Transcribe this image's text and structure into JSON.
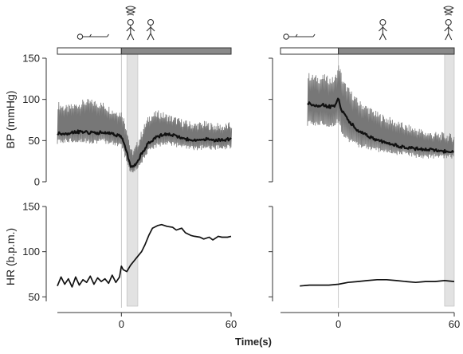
{
  "chart_data": [
    {
      "type": "line",
      "panel": "left",
      "title": "",
      "posture_bar": [
        {
          "state": "supine",
          "x_start": -35,
          "x_end": 0,
          "color": "#ffffff"
        },
        {
          "state": "standing",
          "x_start": 0,
          "x_end": 60,
          "color": "#8a8a8a"
        }
      ],
      "icons": [
        {
          "name": "supine-person-icon",
          "x": -13
        },
        {
          "name": "dizzy-person-icon",
          "x": 5
        },
        {
          "name": "standing-person-icon",
          "x": 16
        }
      ],
      "shaded_band": {
        "x_start": 3,
        "x_end": 9
      },
      "bp": {
        "ylabel": "BP (mmHg)",
        "ylim": [
          0,
          150
        ],
        "yticks": [
          0,
          50,
          100,
          150
        ],
        "series": [
          {
            "x": [
              -35,
              -30,
              -25,
              -20,
              -15,
              -10,
              -5,
              0,
              3,
              5,
              7,
              9,
              12,
              15,
              20,
              25,
              30,
              35,
              40,
              45,
              50,
              55,
              60
            ],
            "upper": [
              93,
              88,
              92,
              96,
              95,
              92,
              85,
              82,
              60,
              35,
              38,
              48,
              65,
              78,
              82,
              78,
              74,
              70,
              68,
              69,
              67,
              66,
              68
            ],
            "mean": [
              58,
              59,
              61,
              60,
              59,
              60,
              58,
              55,
              35,
              18,
              19,
              25,
              38,
              48,
              55,
              58,
              55,
              52,
              50,
              52,
              50,
              51,
              52
            ],
            "lower": [
              48,
              50,
              51,
              50,
              49,
              50,
              47,
              45,
              25,
              12,
              13,
              18,
              28,
              38,
              45,
              48,
              45,
              42,
              40,
              42,
              41,
              42,
              43
            ]
          }
        ]
      },
      "hr": {
        "ylabel": "HR (b.p.m.)",
        "ylim": [
          45,
          150
        ],
        "yticks": [
          50,
          100,
          150
        ],
        "series": [
          {
            "x": [
              -35,
              -33,
              -31,
              -29,
              -27,
              -25,
              -23,
              -21,
              -19,
              -17,
              -15,
              -13,
              -11,
              -9,
              -7,
              -5,
              -3,
              -1,
              0,
              1,
              3,
              5,
              7,
              9,
              11,
              13,
              15,
              17,
              20,
              22,
              25,
              28,
              30,
              33,
              35,
              38,
              40,
              43,
              45,
              48,
              50,
              53,
              55,
              58,
              60
            ],
            "y": [
              62,
              72,
              64,
              70,
              61,
              72,
              63,
              69,
              66,
              73,
              64,
              71,
              67,
              70,
              65,
              74,
              66,
              72,
              84,
              80,
              78,
              85,
              90,
              95,
              100,
              108,
              118,
              126,
              129,
              130,
              128,
              127,
              124,
              126,
              121,
              118,
              117,
              116,
              114,
              116,
              113,
              117,
              116,
              116,
              117
            ]
          }
        ]
      },
      "xlabel": "",
      "xticks": [
        0,
        60
      ],
      "xlim": [
        -35,
        60
      ]
    },
    {
      "type": "line",
      "panel": "right",
      "title": "",
      "posture_bar": [
        {
          "state": "supine",
          "x_start": -30,
          "x_end": 0,
          "color": "#ffffff"
        },
        {
          "state": "standing",
          "x_start": 0,
          "x_end": 60,
          "color": "#8a8a8a"
        }
      ],
      "icons": [
        {
          "name": "supine-person-icon",
          "x": -18
        },
        {
          "name": "standing-person-icon",
          "x": 23
        },
        {
          "name": "dizzy-person-icon",
          "x": 57
        }
      ],
      "shaded_band": {
        "x_start": 55,
        "x_end": 60
      },
      "bp": {
        "ylabel": "",
        "ylim": [
          0,
          150
        ],
        "yticks": [
          0,
          50,
          100,
          150
        ],
        "series": [
          {
            "x": [
              -16,
              -14,
              -12,
              -10,
              -8,
              -6,
              -4,
              -2,
              0,
              2,
              5,
              10,
              15,
              20,
              25,
              30,
              35,
              40,
              45,
              50,
              55,
              60
            ],
            "upper": [
              128,
              126,
              125,
              124,
              126,
              124,
              122,
              124,
              140,
              120,
              110,
              95,
              88,
              80,
              75,
              70,
              65,
              62,
              58,
              56,
              55,
              53
            ],
            "mean": [
              95,
              94,
              93,
              93,
              94,
              92,
              91,
              92,
              100,
              85,
              75,
              62,
              56,
              50,
              47,
              44,
              42,
              40,
              39,
              38,
              37,
              36
            ],
            "lower": [
              70,
              72,
              70,
              71,
              72,
              70,
              69,
              70,
              75,
              60,
              52,
              45,
              42,
              39,
              37,
              35,
              34,
              32,
              31,
              31,
              30,
              30
            ]
          }
        ]
      },
      "hr": {
        "ylabel": "",
        "ylim": [
          45,
          150
        ],
        "yticks": [
          50,
          100,
          150
        ],
        "series": [
          {
            "x": [
              -20,
              -15,
              -10,
              -5,
              0,
              5,
              10,
              15,
              20,
              25,
              30,
              35,
              40,
              45,
              50,
              55,
              60
            ],
            "y": [
              62,
              63,
              63,
              63,
              64,
              66,
              67,
              68,
              69,
              69,
              68,
              67,
              66,
              67,
              67,
              68,
              67
            ]
          }
        ]
      },
      "xlabel": "",
      "xticks": [
        0,
        60
      ],
      "xlim": [
        -30,
        60
      ]
    }
  ],
  "shared": {
    "xlabel": "Time(s)"
  }
}
